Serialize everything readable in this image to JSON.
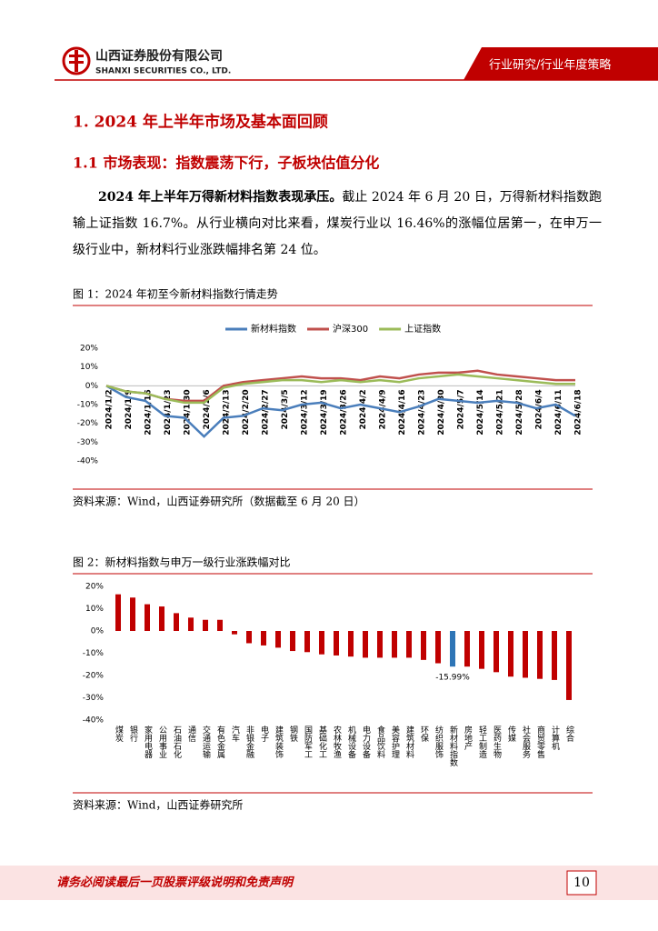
{
  "header": {
    "company": "山西证券股份有限公司",
    "company_en": "SHANXI SECURITIES CO., LTD.",
    "report_type": "行业研究/行业年度策略"
  },
  "section": {
    "title": "1. 2024 年上半年市场及基本面回顾",
    "subtitle": "1.1 市场表现：指数震荡下行，子板块估值分化",
    "paragraph": {
      "bold": "2024 年上半年万得新材料指数表现承压。",
      "text": "截止 2024 年 6 月 20 日，万得新材料指数跑输上证指数 16.7%。从行业横向对比来看，煤炭行业以 16.46%的涨幅位居第一，在申万一级行业中，新材料行业涨跌幅排名第 24 位。"
    }
  },
  "chart_data": [
    {
      "type": "line",
      "title": "图 1：2024 年初至今新材料指数行情走势",
      "source": "资料来源：Wind，山西证券研究所（数据截至 6 月 20 日）",
      "categories": [
        "2024/1/2",
        "2024/1/9",
        "2024/1/16",
        "2024/1/23",
        "2024/1/30",
        "2024/2/6",
        "2024/2/13",
        "2024/2/20",
        "2024/2/27",
        "2024/3/5",
        "2024/3/12",
        "2024/3/19",
        "2024/3/26",
        "2024/4/2",
        "2024/4/9",
        "2024/4/16",
        "2024/4/23",
        "2024/4/30",
        "2024/5/7",
        "2024/5/14",
        "2024/5/21",
        "2024/5/28",
        "2024/6/4",
        "2024/6/11",
        "2024/6/18"
      ],
      "series": [
        {
          "name": "新材料指数",
          "color": "#4a7ebb",
          "values": [
            0,
            -6,
            -8,
            -16,
            -17,
            -27,
            -17,
            -16,
            -12,
            -13,
            -10,
            -9,
            -12,
            -10,
            -12,
            -14,
            -11,
            -7,
            -8,
            -9,
            -8,
            -9,
            -12,
            -10,
            -16
          ]
        },
        {
          "name": "沪深300",
          "color": "#c0504d",
          "values": [
            0,
            -3,
            -4,
            -7,
            -8,
            -8,
            0,
            2,
            3,
            4,
            5,
            4,
            4,
            3,
            5,
            4,
            6,
            7,
            7,
            8,
            6,
            5,
            4,
            3,
            3
          ]
        },
        {
          "name": "上证指数",
          "color": "#9bbb59",
          "values": [
            0,
            -3,
            -4,
            -7,
            -9,
            -9,
            -1,
            1,
            2,
            3,
            3,
            2,
            3,
            2,
            3,
            2,
            4,
            5,
            6,
            5,
            4,
            3,
            2,
            1,
            1
          ]
        }
      ],
      "ylim": [
        -40,
        20
      ],
      "yticks": [
        {
          "value": 20,
          "label": "20%"
        },
        {
          "value": 10,
          "label": "10%"
        },
        {
          "value": 0,
          "label": "0%"
        },
        {
          "value": -10,
          "label": "-10%"
        },
        {
          "value": -20,
          "label": "-20%"
        },
        {
          "value": -30,
          "label": "-30%"
        },
        {
          "value": -40,
          "label": "-40%"
        }
      ],
      "legend": "top",
      "grid": false
    },
    {
      "type": "bar",
      "title": "图 2：新材料指数与申万一级行业涨跌幅对比",
      "source": "资料来源：Wind，山西证券研究所",
      "categories": [
        "煤炭",
        "银行",
        "家用电器",
        "公用事业",
        "石油石化",
        "通信",
        "交通运输",
        "有色金属",
        "汽车",
        "非银金融",
        "电子",
        "建筑装饰",
        "钢铁",
        "国防军工",
        "基础化工",
        "农林牧渔",
        "机械设备",
        "电力设备",
        "食品饮料",
        "美容护理",
        "建筑材料",
        "环保",
        "纺织服饰",
        "新材料指数",
        "房地产",
        "轻工制造",
        "医药生物",
        "传媒",
        "社会服务",
        "商贸零售",
        "计算机",
        "综合"
      ],
      "values": [
        16.46,
        15,
        12,
        11,
        8,
        6,
        5,
        5,
        -1.5,
        -5.5,
        -6.5,
        -7.5,
        -9,
        -9.5,
        -10.5,
        -11,
        -11.5,
        -12,
        -12,
        -12,
        -12,
        -13,
        -14.5,
        -15.99,
        -16,
        -17,
        -18.5,
        -20.5,
        -21,
        -21.5,
        -22,
        -31
      ],
      "value_labels": [
        null,
        null,
        null,
        null,
        null,
        null,
        null,
        null,
        null,
        null,
        null,
        null,
        null,
        null,
        null,
        null,
        null,
        null,
        null,
        null,
        null,
        null,
        null,
        "-15.99%",
        null,
        null,
        null,
        null,
        null,
        null,
        null,
        null
      ],
      "colors": [
        "#c00000",
        "#c00000",
        "#c00000",
        "#c00000",
        "#c00000",
        "#c00000",
        "#c00000",
        "#c00000",
        "#c00000",
        "#c00000",
        "#c00000",
        "#c00000",
        "#c00000",
        "#c00000",
        "#c00000",
        "#c00000",
        "#c00000",
        "#c00000",
        "#c00000",
        "#c00000",
        "#c00000",
        "#c00000",
        "#c00000",
        "#2e75b6",
        "#c00000",
        "#c00000",
        "#c00000",
        "#c00000",
        "#c00000",
        "#c00000",
        "#c00000",
        "#c00000"
      ],
      "ylim": [
        -40,
        20
      ],
      "yticks": [
        {
          "value": 20,
          "label": "20%"
        },
        {
          "value": 10,
          "label": "10%"
        },
        {
          "value": 0,
          "label": "0%"
        },
        {
          "value": -10,
          "label": "-10%"
        },
        {
          "value": -20,
          "label": "-20%"
        },
        {
          "value": -30,
          "label": "-30%"
        },
        {
          "value": -40,
          "label": "-40%"
        }
      ],
      "grid": false
    }
  ],
  "footer": {
    "disclaimer": "请务必阅读最后一页股票评级说明和免责声明",
    "page": "10"
  }
}
